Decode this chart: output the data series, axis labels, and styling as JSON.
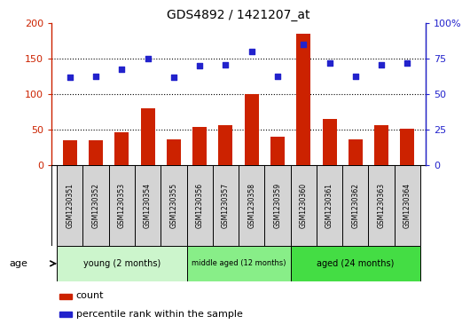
{
  "title": "GDS4892 / 1421207_at",
  "samples": [
    "GSM1230351",
    "GSM1230352",
    "GSM1230353",
    "GSM1230354",
    "GSM1230355",
    "GSM1230356",
    "GSM1230357",
    "GSM1230358",
    "GSM1230359",
    "GSM1230360",
    "GSM1230361",
    "GSM1230362",
    "GSM1230363",
    "GSM1230364"
  ],
  "counts": [
    35,
    35,
    46,
    80,
    36,
    54,
    57,
    100,
    40,
    185,
    65,
    37,
    57,
    51
  ],
  "percentile_ranks": [
    62,
    63,
    68,
    75,
    62,
    70,
    71,
    80,
    63,
    85,
    72,
    63,
    71,
    72
  ],
  "bar_color": "#cc2200",
  "dot_color": "#2222cc",
  "ylim_left": [
    0,
    200
  ],
  "ylim_right": [
    0,
    100
  ],
  "yticks_left": [
    0,
    50,
    100,
    150,
    200
  ],
  "ytick_labels_left": [
    "0",
    "50",
    "100",
    "150",
    "200"
  ],
  "yticks_right": [
    0,
    25,
    50,
    75,
    100
  ],
  "ytick_labels_right": [
    "0",
    "25",
    "50",
    "75",
    "100%"
  ],
  "groups": [
    {
      "label": "young (2 months)",
      "start": 0,
      "end": 5
    },
    {
      "label": "middle aged (12 months)",
      "start": 5,
      "end": 9
    },
    {
      "label": "aged (24 months)",
      "start": 9,
      "end": 14
    }
  ],
  "group_colors": [
    "#ccf5cc",
    "#88ee88",
    "#44dd44"
  ],
  "sample_box_color": "#d4d4d4",
  "age_label": "age",
  "legend_count_label": "count",
  "legend_percentile_label": "percentile rank within the sample",
  "bar_width": 0.55
}
